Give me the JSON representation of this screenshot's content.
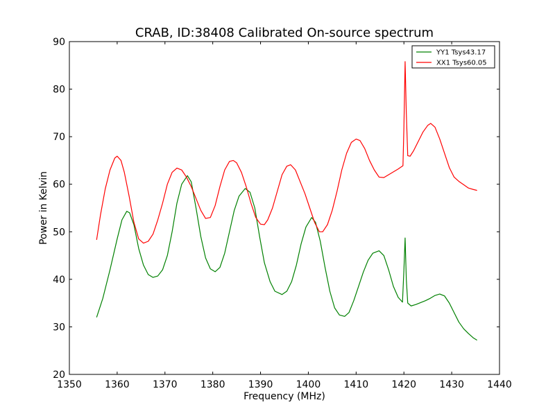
{
  "chart_data": {
    "type": "line",
    "title": "CRAB, ID:38408 Calibrated On-source spectrum",
    "xlabel": "Frequency (MHz)",
    "ylabel": "Power in Kelvin",
    "xlim": [
      1350,
      1440
    ],
    "ylim": [
      20,
      90
    ],
    "xticks": [
      1350,
      1360,
      1370,
      1380,
      1390,
      1400,
      1410,
      1420,
      1430,
      1440
    ],
    "yticks": [
      20,
      30,
      40,
      50,
      60,
      70,
      80,
      90
    ],
    "grid": false,
    "legend_position": "top-right",
    "series": [
      {
        "name": "YY1 Tsys43.17",
        "color": "#008000",
        "points": [
          [
            1355.7,
            32.0
          ],
          [
            1357.0,
            36.0
          ],
          [
            1358.5,
            42.0
          ],
          [
            1360.0,
            48.5
          ],
          [
            1361.0,
            52.5
          ],
          [
            1362.0,
            54.3
          ],
          [
            1362.6,
            54.0
          ],
          [
            1363.5,
            51.5
          ],
          [
            1364.5,
            46.5
          ],
          [
            1365.5,
            43.0
          ],
          [
            1366.5,
            41.0
          ],
          [
            1367.5,
            40.4
          ],
          [
            1368.5,
            40.7
          ],
          [
            1369.5,
            42.0
          ],
          [
            1370.5,
            45.0
          ],
          [
            1371.5,
            50.0
          ],
          [
            1372.5,
            56.0
          ],
          [
            1373.5,
            60.0
          ],
          [
            1374.7,
            61.8
          ],
          [
            1375.5,
            60.5
          ],
          [
            1376.5,
            55.0
          ],
          [
            1377.5,
            49.0
          ],
          [
            1378.5,
            44.5
          ],
          [
            1379.5,
            42.2
          ],
          [
            1380.5,
            41.6
          ],
          [
            1381.5,
            42.5
          ],
          [
            1382.5,
            45.5
          ],
          [
            1383.5,
            50.0
          ],
          [
            1384.5,
            54.5
          ],
          [
            1385.5,
            57.5
          ],
          [
            1386.8,
            59.1
          ],
          [
            1387.8,
            58.3
          ],
          [
            1388.8,
            55.0
          ],
          [
            1389.8,
            49.0
          ],
          [
            1390.8,
            43.5
          ],
          [
            1392.0,
            39.5
          ],
          [
            1393.0,
            37.5
          ],
          [
            1394.5,
            36.8
          ],
          [
            1395.5,
            37.5
          ],
          [
            1396.5,
            39.5
          ],
          [
            1397.5,
            43.0
          ],
          [
            1398.5,
            47.5
          ],
          [
            1399.5,
            51.0
          ],
          [
            1400.7,
            53.0
          ],
          [
            1401.5,
            52.0
          ],
          [
            1402.5,
            48.0
          ],
          [
            1403.5,
            42.5
          ],
          [
            1404.5,
            37.5
          ],
          [
            1405.5,
            34.0
          ],
          [
            1406.5,
            32.5
          ],
          [
            1407.6,
            32.2
          ],
          [
            1408.5,
            33.0
          ],
          [
            1409.5,
            35.5
          ],
          [
            1410.5,
            38.5
          ],
          [
            1411.5,
            41.5
          ],
          [
            1412.5,
            44.0
          ],
          [
            1413.5,
            45.5
          ],
          [
            1414.8,
            46.0
          ],
          [
            1415.8,
            45.0
          ],
          [
            1416.8,
            42.0
          ],
          [
            1417.8,
            38.5
          ],
          [
            1418.8,
            36.2
          ],
          [
            1419.7,
            35.2
          ],
          [
            1420.0,
            42.0
          ],
          [
            1420.25,
            48.7
          ],
          [
            1420.5,
            40.0
          ],
          [
            1420.8,
            35.0
          ],
          [
            1421.5,
            34.4
          ],
          [
            1422.5,
            34.7
          ],
          [
            1423.5,
            35.1
          ],
          [
            1424.5,
            35.5
          ],
          [
            1425.5,
            36.0
          ],
          [
            1426.5,
            36.6
          ],
          [
            1427.5,
            36.9
          ],
          [
            1428.5,
            36.5
          ],
          [
            1429.5,
            35.0
          ],
          [
            1430.5,
            33.0
          ],
          [
            1431.5,
            31.0
          ],
          [
            1432.5,
            29.6
          ],
          [
            1433.5,
            28.6
          ],
          [
            1434.5,
            27.7
          ],
          [
            1435.3,
            27.2
          ]
        ]
      },
      {
        "name": "XX1 Tsys60.05",
        "color": "#ff0000",
        "points": [
          [
            1355.7,
            48.3
          ],
          [
            1356.5,
            53.5
          ],
          [
            1357.5,
            59.0
          ],
          [
            1358.5,
            63.0
          ],
          [
            1359.5,
            65.5
          ],
          [
            1360.0,
            65.9
          ],
          [
            1360.8,
            65.0
          ],
          [
            1361.5,
            62.5
          ],
          [
            1362.5,
            57.5
          ],
          [
            1363.5,
            52.0
          ],
          [
            1364.5,
            48.5
          ],
          [
            1365.5,
            47.6
          ],
          [
            1366.5,
            48.0
          ],
          [
            1367.5,
            49.5
          ],
          [
            1368.5,
            52.5
          ],
          [
            1369.5,
            56.0
          ],
          [
            1370.5,
            60.0
          ],
          [
            1371.5,
            62.5
          ],
          [
            1372.5,
            63.4
          ],
          [
            1373.5,
            63.0
          ],
          [
            1374.5,
            61.5
          ],
          [
            1375.5,
            59.5
          ],
          [
            1376.5,
            57.0
          ],
          [
            1377.5,
            54.5
          ],
          [
            1378.5,
            52.8
          ],
          [
            1379.5,
            53.0
          ],
          [
            1380.5,
            55.5
          ],
          [
            1381.5,
            59.5
          ],
          [
            1382.5,
            63.0
          ],
          [
            1383.5,
            64.8
          ],
          [
            1384.3,
            65.0
          ],
          [
            1385.0,
            64.5
          ],
          [
            1386.0,
            62.5
          ],
          [
            1387.0,
            59.5
          ],
          [
            1388.0,
            56.0
          ],
          [
            1389.0,
            53.0
          ],
          [
            1390.0,
            51.6
          ],
          [
            1390.8,
            51.5
          ],
          [
            1391.5,
            52.5
          ],
          [
            1392.5,
            55.0
          ],
          [
            1393.5,
            58.5
          ],
          [
            1394.5,
            62.0
          ],
          [
            1395.5,
            63.8
          ],
          [
            1396.3,
            64.1
          ],
          [
            1397.3,
            63.0
          ],
          [
            1398.3,
            60.5
          ],
          [
            1399.3,
            58.0
          ],
          [
            1400.3,
            55.0
          ],
          [
            1401.3,
            52.0
          ],
          [
            1402.3,
            50.0
          ],
          [
            1403.0,
            50.0
          ],
          [
            1404.0,
            51.5
          ],
          [
            1405.0,
            54.5
          ],
          [
            1406.0,
            58.5
          ],
          [
            1407.0,
            63.0
          ],
          [
            1408.0,
            66.5
          ],
          [
            1409.0,
            68.8
          ],
          [
            1410.0,
            69.5
          ],
          [
            1410.8,
            69.2
          ],
          [
            1411.8,
            67.5
          ],
          [
            1412.8,
            65.0
          ],
          [
            1413.8,
            63.0
          ],
          [
            1414.8,
            61.5
          ],
          [
            1415.8,
            61.4
          ],
          [
            1416.8,
            62.0
          ],
          [
            1417.8,
            62.6
          ],
          [
            1418.8,
            63.2
          ],
          [
            1419.8,
            63.9
          ],
          [
            1420.0,
            72.0
          ],
          [
            1420.25,
            85.8
          ],
          [
            1420.5,
            75.0
          ],
          [
            1420.8,
            66.0
          ],
          [
            1421.3,
            65.9
          ],
          [
            1422.0,
            67.0
          ],
          [
            1423.0,
            69.0
          ],
          [
            1424.0,
            71.0
          ],
          [
            1425.0,
            72.4
          ],
          [
            1425.6,
            72.8
          ],
          [
            1426.5,
            72.0
          ],
          [
            1427.5,
            69.5
          ],
          [
            1428.5,
            66.5
          ],
          [
            1429.5,
            63.5
          ],
          [
            1430.5,
            61.5
          ],
          [
            1431.5,
            60.6
          ],
          [
            1432.5,
            59.9
          ],
          [
            1433.5,
            59.2
          ],
          [
            1434.5,
            58.9
          ],
          [
            1435.3,
            58.7
          ]
        ]
      }
    ]
  }
}
